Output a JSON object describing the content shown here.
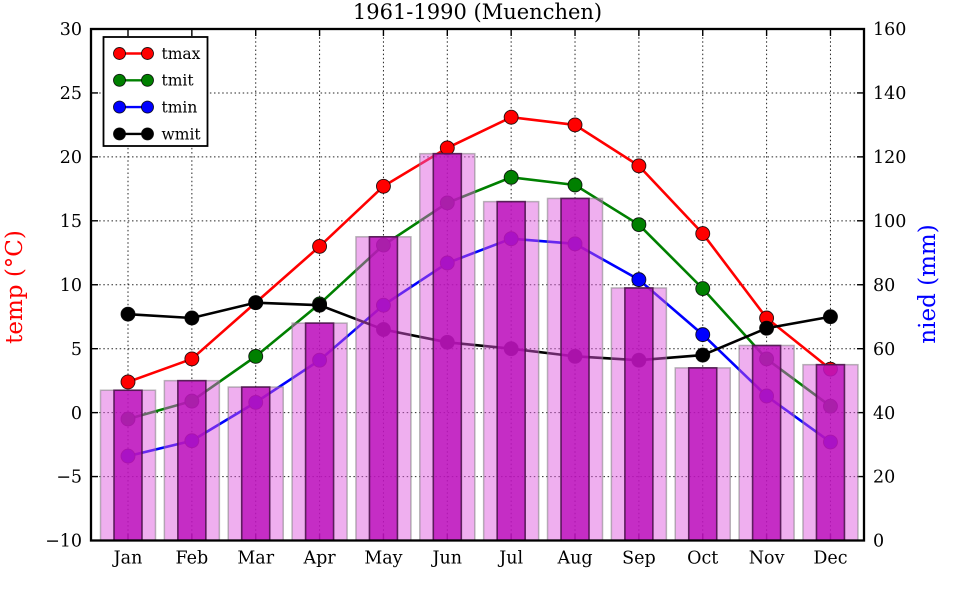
{
  "title": "1961-1990 (Muenchen)",
  "chart_data": {
    "type": "line+bar climate diagram",
    "categories": [
      "Jan",
      "Feb",
      "Mar",
      "Apr",
      "May",
      "Jun",
      "Jul",
      "Aug",
      "Sep",
      "Oct",
      "Nov",
      "Dec"
    ],
    "temp_series": [
      {
        "name": "tmax",
        "color": "#ff0000",
        "values": [
          2.4,
          4.2,
          8.6,
          13.0,
          17.7,
          20.7,
          23.1,
          22.5,
          19.3,
          14.0,
          7.4,
          3.4
        ]
      },
      {
        "name": "tmit",
        "color": "#008000",
        "values": [
          -0.5,
          0.9,
          4.4,
          8.5,
          13.1,
          16.4,
          18.4,
          17.8,
          14.7,
          9.7,
          4.2,
          0.5
        ]
      },
      {
        "name": "tmin",
        "color": "#0000ff",
        "values": [
          -3.4,
          -2.2,
          0.8,
          4.1,
          8.4,
          11.7,
          13.6,
          13.2,
          10.4,
          6.1,
          1.3,
          -2.3
        ]
      },
      {
        "name": "wmit",
        "color": "#000000",
        "values": [
          7.7,
          7.4,
          8.6,
          8.4,
          6.5,
          5.5,
          5.0,
          4.4,
          4.1,
          4.5,
          6.6,
          7.5
        ]
      }
    ],
    "precip_series": {
      "name": "nied",
      "values": [
        47,
        50,
        48,
        68,
        95,
        121,
        106,
        107,
        79,
        54,
        61,
        55
      ],
      "bar_light_color": "#eeb3ee",
      "bar_dark_color": "#c83fc8"
    },
    "left_axis": {
      "label": "temp (°C)",
      "color": "#ff0000",
      "min": -10,
      "max": 30,
      "step": 5
    },
    "right_axis": {
      "label": "nied (mm)",
      "color": "#0000ff",
      "min": 0,
      "max": 160,
      "step": 20
    },
    "grid": true,
    "legend": {
      "position": "upper left",
      "entries": [
        "tmax",
        "tmit",
        "tmin",
        "wmit"
      ]
    }
  }
}
